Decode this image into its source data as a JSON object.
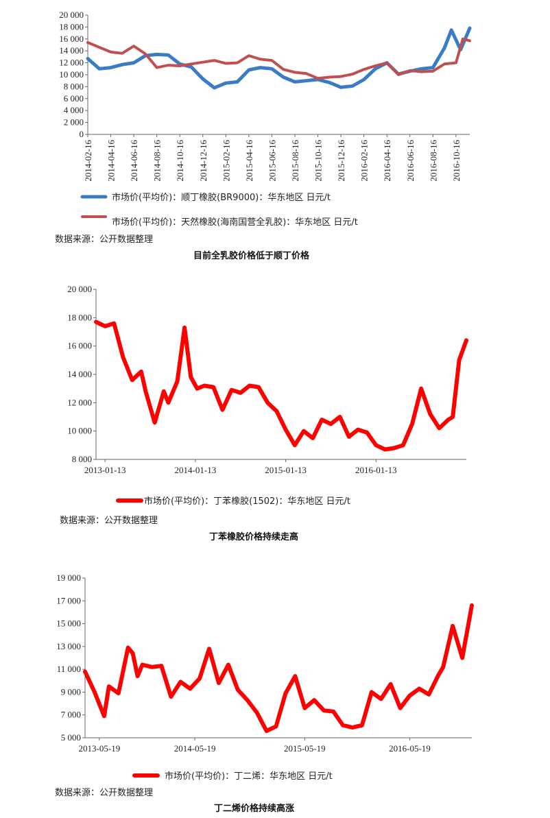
{
  "charts": [
    {
      "type": "line",
      "caption": "目前全乳胶价格低于顺丁价格",
      "source": "数据来源：公开数据整理",
      "yticks": [
        "20 000",
        "18 000",
        "16 000",
        "14 000",
        "12 000",
        "10 000",
        "8 000",
        "6 000",
        "4 000",
        "2 000",
        "0"
      ],
      "xticks": [
        "2014-02-16",
        "2014-04-16",
        "2014-06-16",
        "2014-08-16",
        "2014-10-16",
        "2014-12-16",
        "2015-02-16",
        "2015-04-16",
        "2015-06-16",
        "2015-08-16",
        "2015-10-16",
        "2015-12-16",
        "2016-02-16",
        "2016-04-16",
        "2016-06-16",
        "2016-08-16",
        "2016-10-16"
      ],
      "legend": [
        "市场价(平均价)：顺丁橡胶(BR9000)：华东地区 日元/t",
        "市场价(平均价)：天然橡胶(海南国营全乳胶)：华东地区 日元/t"
      ]
    },
    {
      "type": "line",
      "caption": "丁苯橡胶价格持续走高",
      "source": "数据来源：公开数据整理",
      "yticks": [
        "20 000",
        "18 000",
        "16 000",
        "14 000",
        "12 000",
        "10 000",
        "8 000"
      ],
      "xticks": [
        "2013-01-13",
        "2014-01-13",
        "2015-01-13",
        "2016-01-13"
      ],
      "legend": [
        "市场价(平均价)：丁苯橡胶(1502)：华东地区 日元/t"
      ]
    },
    {
      "type": "line",
      "caption": "丁二烯价格持续高涨",
      "source": "数据来源：公开数据整理",
      "yticks": [
        "19 000",
        "17 000",
        "15 000",
        "13 000",
        "11 000",
        "9 000",
        "7 000",
        "5 000"
      ],
      "xticks": [
        "2013-05-19",
        "2014-05-19",
        "2015-05-19",
        "2016-05-19"
      ],
      "legend": [
        "市场价(平均价)：丁二烯：华东地区 日元/t"
      ]
    }
  ],
  "chart_data": [
    {
      "type": "line",
      "categories": [
        "2014-02-16",
        "2014-04-16",
        "2014-06-16",
        "2014-08-16",
        "2014-10-16",
        "2014-12-16",
        "2015-02-16",
        "2015-04-16",
        "2015-06-16",
        "2015-08-16",
        "2015-10-16",
        "2015-12-16",
        "2016-02-16",
        "2016-04-16",
        "2016-06-16",
        "2016-08-16",
        "2016-10-16"
      ],
      "ylim": [
        0,
        20000
      ],
      "series": [
        {
          "name": "市场价(平均价)：顺丁橡胶(BR9000)：华东地区 日元/t",
          "color": "#3a7cc4",
          "x": [
            0,
            0.5,
            1,
            1.5,
            2,
            2.5,
            3,
            3.5,
            4,
            4.5,
            5,
            5.5,
            6,
            6.5,
            7,
            7.5,
            8,
            8.5,
            9,
            9.5,
            10,
            10.5,
            11,
            11.5,
            12,
            12.5,
            13,
            13.5,
            14,
            14.5,
            15,
            15.5,
            15.8,
            16.2,
            16.6
          ],
          "y": [
            12700,
            11000,
            11200,
            11700,
            12000,
            13200,
            13400,
            13300,
            11800,
            11300,
            9300,
            7800,
            8600,
            8800,
            10800,
            11200,
            11000,
            9600,
            8800,
            9000,
            9200,
            8700,
            7900,
            8100,
            9200,
            11000,
            12000,
            10100,
            10600,
            11000,
            11200,
            14500,
            17500,
            14200,
            17800
          ]
        },
        {
          "name": "市场价(平均价)：天然橡胶(海南国营全乳胶)：华东地区 日元/t",
          "color": "#c0504d",
          "x": [
            0,
            0.5,
            1,
            1.5,
            2,
            2.5,
            3,
            3.5,
            4,
            4.5,
            5,
            5.5,
            6,
            6.5,
            7,
            7.5,
            8,
            8.5,
            9,
            9.5,
            10,
            10.5,
            11,
            11.5,
            12,
            12.5,
            13,
            13.5,
            14,
            14.5,
            15,
            15.5,
            16,
            16.3,
            16.6
          ],
          "y": [
            15400,
            14600,
            13800,
            13600,
            14800,
            13500,
            11200,
            11600,
            11500,
            11800,
            12100,
            12400,
            11900,
            12000,
            13200,
            12600,
            12400,
            10900,
            10400,
            10200,
            9400,
            9600,
            9700,
            10100,
            10900,
            11500,
            12000,
            10000,
            10700,
            10500,
            10600,
            11800,
            12000,
            16000,
            15700
          ]
        }
      ]
    },
    {
      "type": "line",
      "categories": [
        "2013-01-13",
        "2014-01-13",
        "2015-01-13",
        "2016-01-13"
      ],
      "ylim": [
        8000,
        20000
      ],
      "series": [
        {
          "name": "市场价(平均价)：丁苯橡胶(1502)：华东地区 日元/t",
          "color": "#ff0000",
          "x": [
            0,
            0.1,
            0.2,
            0.3,
            0.4,
            0.5,
            0.55,
            0.65,
            0.75,
            0.8,
            0.9,
            0.98,
            1.05,
            1.12,
            1.2,
            1.3,
            1.4,
            1.5,
            1.6,
            1.7,
            1.8,
            1.9,
            2.0,
            2.1,
            2.2,
            2.3,
            2.4,
            2.5,
            2.6,
            2.7,
            2.8,
            2.9,
            3.0,
            3.1,
            3.2,
            3.3,
            3.4,
            3.5,
            3.6,
            3.7,
            3.8,
            3.9,
            3.95,
            4.02,
            4.1
          ],
          "y": [
            17700,
            17400,
            17600,
            15200,
            13600,
            14200,
            12800,
            10600,
            12800,
            12000,
            13500,
            17300,
            13800,
            13000,
            13200,
            13100,
            11500,
            12900,
            12700,
            13200,
            13100,
            12000,
            11400,
            10100,
            9000,
            10000,
            9500,
            10800,
            10500,
            11000,
            9600,
            10100,
            9900,
            9000,
            8700,
            8800,
            9000,
            10500,
            13000,
            11200,
            10200,
            10800,
            11000,
            15000,
            16400
          ]
        }
      ]
    },
    {
      "type": "line",
      "categories": [
        "2013-05-19",
        "2014-05-19",
        "2015-05-19",
        "2016-05-19"
      ],
      "ylim": [
        5000,
        19000
      ],
      "series": [
        {
          "name": "市场价(平均价)：丁二烯：华东地区 日元/t",
          "color": "#ff0000",
          "x": [
            0,
            0.1,
            0.2,
            0.25,
            0.35,
            0.45,
            0.5,
            0.55,
            0.6,
            0.7,
            0.8,
            0.9,
            1.0,
            1.1,
            1.2,
            1.3,
            1.4,
            1.5,
            1.6,
            1.7,
            1.8,
            1.9,
            2.0,
            2.1,
            2.2,
            2.3,
            2.4,
            2.5,
            2.6,
            2.7,
            2.8,
            2.9,
            3.0,
            3.1,
            3.2,
            3.3,
            3.4,
            3.5,
            3.6,
            3.7,
            3.75,
            3.85,
            3.95,
            4.05
          ],
          "y": [
            10800,
            9000,
            6900,
            9500,
            8900,
            12900,
            12400,
            10400,
            11400,
            11200,
            11300,
            8600,
            9900,
            9300,
            10200,
            12800,
            9800,
            11400,
            9200,
            8300,
            7200,
            5600,
            6000,
            8900,
            10400,
            7600,
            8300,
            7400,
            7300,
            6100,
            5900,
            6100,
            9000,
            8400,
            9700,
            7600,
            8700,
            9300,
            8800,
            10500,
            11200,
            14800,
            12000,
            16600
          ]
        }
      ]
    }
  ]
}
